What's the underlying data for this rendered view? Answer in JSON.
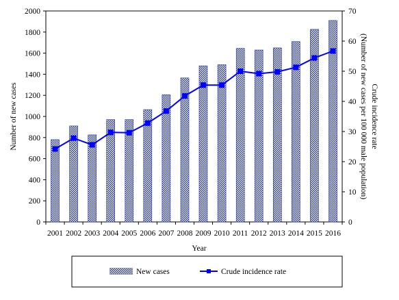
{
  "chart_data": {
    "type": "bar",
    "categories": [
      "2001",
      "2002",
      "2003",
      "2004",
      "2005",
      "2006",
      "2007",
      "2008",
      "2009",
      "2010",
      "2011",
      "2012",
      "2013",
      "2014",
      "2015",
      "2016"
    ],
    "series": [
      {
        "name": "New cases",
        "type": "bar",
        "axis": "left",
        "values": [
          780,
          910,
          825,
          970,
          970,
          1065,
          1205,
          1365,
          1480,
          1490,
          1645,
          1630,
          1650,
          1710,
          1825,
          1910
        ]
      },
      {
        "name": "Crude incidence rate",
        "type": "line",
        "axis": "right",
        "values": [
          24.2,
          27.8,
          25.6,
          29.7,
          29.6,
          32.8,
          36.8,
          41.8,
          45.4,
          45.4,
          50.0,
          49.2,
          49.8,
          51.3,
          54.4,
          56.7
        ]
      }
    ],
    "xlabel": "Year",
    "ylabel": "Number of new cases",
    "y2label_line1": "Crude incidence rate",
    "y2label_line2": "(Number of new cases per 100 000 male population)",
    "ylim": [
      0,
      2000
    ],
    "y2lim": [
      0,
      70
    ],
    "yticks": [
      "0",
      "200",
      "400",
      "600",
      "800",
      "1000",
      "1200",
      "1400",
      "1600",
      "1800",
      "2000"
    ],
    "y2ticks": [
      "0",
      "10",
      "20",
      "30",
      "40",
      "50",
      "60",
      "70"
    ],
    "grid": false,
    "legend_position": "bottom",
    "colors": {
      "bar_fill": "#1f2f8f",
      "line": "#0000ff",
      "marker": "#0000ff"
    }
  }
}
